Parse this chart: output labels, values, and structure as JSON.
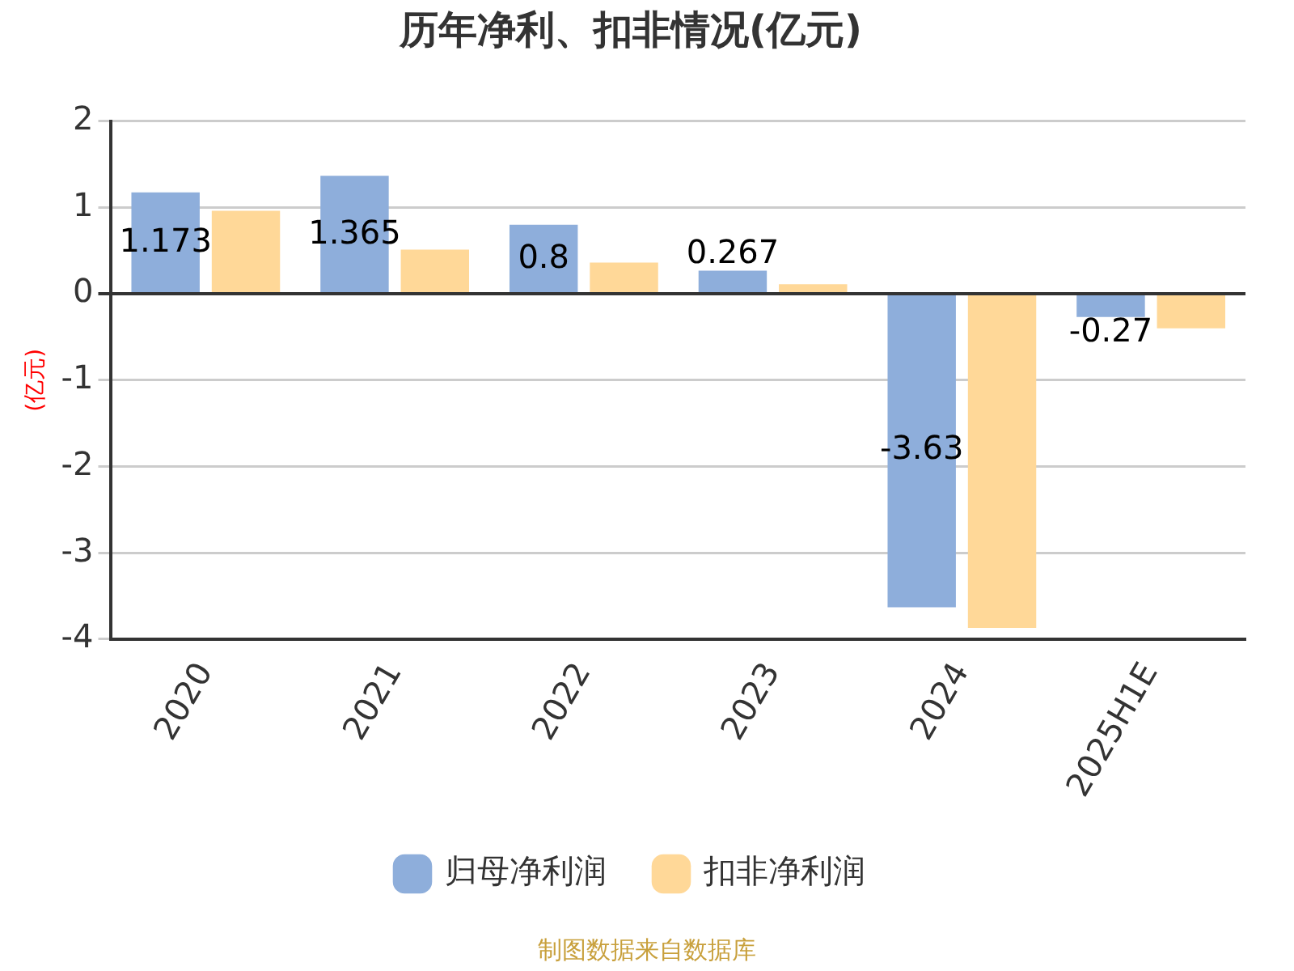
{
  "chart_data": {
    "type": "bar",
    "title": "历年净利、扣非情况(亿元)",
    "ylabel": "(亿元)",
    "categories": [
      "2020",
      "2021",
      "2022",
      "2023",
      "2024",
      "2025H1E"
    ],
    "series": [
      {
        "name": "归母净利润",
        "color": "#8eaedb",
        "values": [
          1.173,
          1.365,
          0.8,
          0.267,
          -3.63,
          -0.27
        ],
        "value_labels": [
          "1.173",
          "1.365",
          "0.8",
          "0.267",
          "-3.63",
          "-0.27"
        ]
      },
      {
        "name": "扣非净利润",
        "color": "#ffd898",
        "values": [
          0.96,
          0.51,
          0.36,
          0.11,
          -3.87,
          -0.4
        ]
      }
    ],
    "ylim": [
      -4,
      2
    ],
    "yticks": [
      -4,
      -3,
      -2,
      -1,
      0,
      1,
      2
    ],
    "grid": "y",
    "legend": "bottom",
    "annotations": [
      "制图数据来自数据库"
    ]
  }
}
